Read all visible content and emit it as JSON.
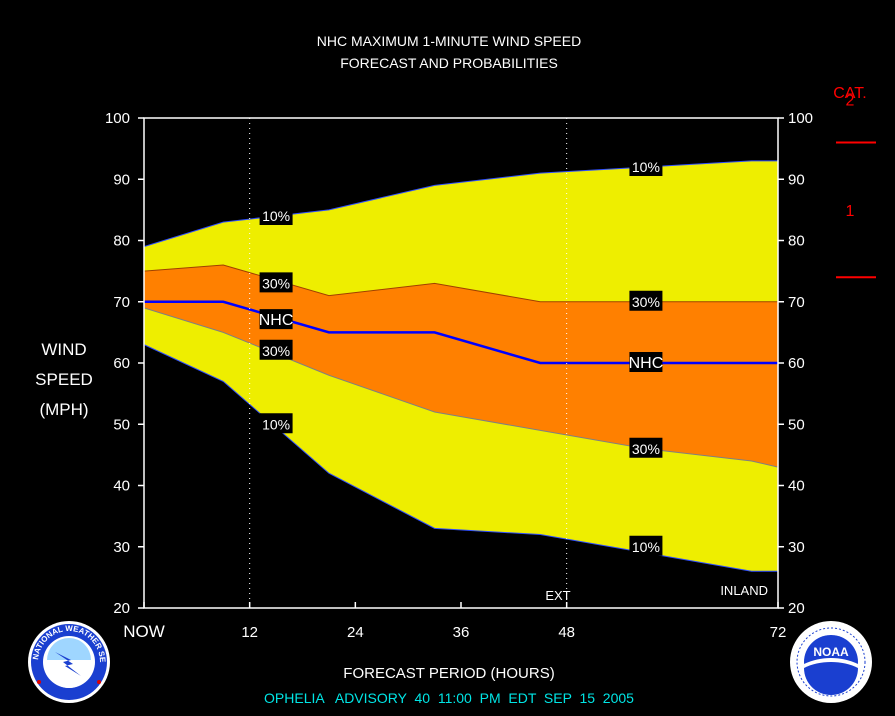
{
  "chart_data": {
    "type": "area",
    "title": "NHC MAXIMUM 1-MINUTE WIND SPEED",
    "subtitle": "FORECAST AND PROBABILITIES",
    "ylabel_lines": [
      "WIND",
      "SPEED",
      "(MPH)"
    ],
    "xlabel": "FORECAST PERIOD (HOURS)",
    "footer": "OPHELIA   ADVISORY  40  11:00  PM  EDT  SEP  15  2005",
    "x_ticks": [
      {
        "x": 0,
        "label": "NOW"
      },
      {
        "x": 12,
        "label": "12"
      },
      {
        "x": 24,
        "label": "24"
      },
      {
        "x": 36,
        "label": "36"
      },
      {
        "x": 48,
        "label": "48"
      },
      {
        "x": 72,
        "label": "72"
      }
    ],
    "y_ticks": [
      "20",
      "30",
      "40",
      "50",
      "60",
      "70",
      "80",
      "90",
      "100"
    ],
    "xlim": [
      0,
      72
    ],
    "ylim": [
      20,
      100
    ],
    "x": [
      0,
      9,
      21,
      33,
      45,
      57,
      69,
      72
    ],
    "series": [
      {
        "name": "10%",
        "band": "upper",
        "values": [
          79,
          83,
          85,
          89,
          91,
          92,
          93,
          93
        ]
      },
      {
        "name": "30%",
        "band": "upper",
        "values": [
          75,
          76,
          71,
          73,
          70,
          70,
          70,
          70
        ]
      },
      {
        "name": "NHC",
        "values": [
          70,
          70,
          65,
          65,
          60,
          60,
          60,
          60
        ]
      },
      {
        "name": "30%",
        "band": "lower",
        "values": [
          69,
          65,
          58,
          52,
          49,
          46,
          44,
          43
        ]
      },
      {
        "name": "10%",
        "band": "lower",
        "values": [
          63,
          57,
          42,
          33,
          32,
          29,
          26,
          26
        ]
      }
    ],
    "curve_labels": [
      {
        "text": "10%",
        "x": 15,
        "y": 84
      },
      {
        "text": "30%",
        "x": 15,
        "y": 73
      },
      {
        "text": "NHC",
        "x": 15,
        "y": 67
      },
      {
        "text": "30%",
        "x": 15,
        "y": 62
      },
      {
        "text": "10%",
        "x": 15,
        "y": 50
      },
      {
        "text": "10%",
        "x": 57,
        "y": 92
      },
      {
        "text": "30%",
        "x": 57,
        "y": 70
      },
      {
        "text": "NHC",
        "x": 57,
        "y": 60
      },
      {
        "text": "30%",
        "x": 57,
        "y": 46
      },
      {
        "text": "10%",
        "x": 57,
        "y": 30
      }
    ],
    "annotations": {
      "ext": "EXT",
      "inland": "INLAND"
    },
    "category_scale": {
      "title": "CAT.",
      "labels": [
        {
          "text": "2",
          "y": 103
        },
        {
          "text": "1",
          "y": 85
        }
      ],
      "thresholds": [
        96,
        74
      ]
    },
    "colors": {
      "outer_band": "#eeee00",
      "inner_band": "#ff8000",
      "nhc_line": "#0000ff",
      "category": "#ff0000",
      "footer": "#00e5e5",
      "background": "#000000"
    },
    "grid": "dotted vertical at 12 and 48",
    "logos": {
      "left": "NATIONAL WEATHER SERVICE",
      "right": "NOAA"
    }
  }
}
